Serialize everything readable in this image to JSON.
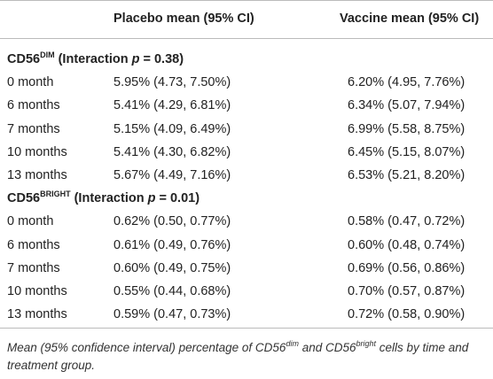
{
  "table": {
    "header": {
      "placebo": "Placebo mean (95% CI)",
      "vaccine": "Vaccine mean (95% CI)"
    },
    "sections": [
      {
        "title": {
          "marker": "CD56",
          "superscript": "DIM",
          "prefix": " (Interaction ",
          "p_symbol": "p",
          "suffix": " = 0.38)"
        },
        "rows": [
          [
            "0 month",
            "5.95% (4.73, 7.50%)",
            "6.20% (4.95, 7.76%)"
          ],
          [
            "6 months",
            "5.41% (4.29, 6.81%)",
            "6.34% (5.07, 7.94%)"
          ],
          [
            "7 months",
            "5.15% (4.09, 6.49%)",
            "6.99% (5.58, 8.75%)"
          ],
          [
            "10 months",
            "5.41% (4.30, 6.82%)",
            "6.45% (5.15, 8.07%)"
          ],
          [
            "13 months",
            "5.67% (4.49, 7.16%)",
            "6.53% (5.21, 8.20%)"
          ]
        ]
      },
      {
        "title": {
          "marker": "CD56",
          "superscript": "BRIGHT",
          "prefix": " (Interaction ",
          "p_symbol": "p",
          "suffix": " = 0.01)"
        },
        "rows": [
          [
            "0 month",
            "0.62% (0.50, 0.77%)",
            "0.58% (0.47, 0.72%)"
          ],
          [
            "6 months",
            "0.61% (0.49, 0.76%)",
            "0.60% (0.48, 0.74%)"
          ],
          [
            "7 months",
            "0.60% (0.49, 0.75%)",
            "0.69% (0.56, 0.86%)"
          ],
          [
            "10 months",
            "0.55% (0.44, 0.68%)",
            "0.70% (0.57, 0.87%)"
          ],
          [
            "13 months",
            "0.59% (0.47, 0.73%)",
            "0.72% (0.58, 0.90%)"
          ]
        ]
      }
    ]
  },
  "caption": {
    "text_1": "Mean (95% confidence interval) percentage of CD56",
    "sup_1": "dim",
    "text_2": " and CD56",
    "sup_2": "bright",
    "text_3": " cells by time and treatment group."
  }
}
